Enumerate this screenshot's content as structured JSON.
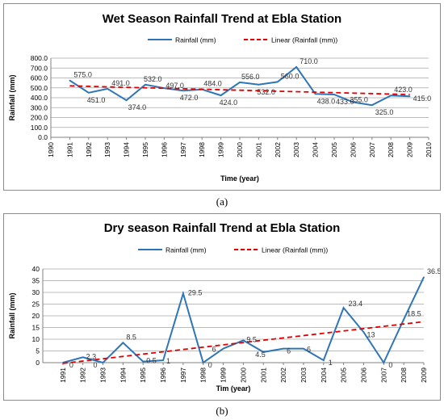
{
  "chart_data": [
    {
      "type": "line",
      "title": "Wet Season Rainfall Trend at Ebla Station",
      "xlabel": "Time (year)",
      "ylabel": "Rainfall (mm)",
      "xlim": [
        1990,
        2010
      ],
      "ylim": [
        0,
        800
      ],
      "y_tick_format": "0.0",
      "x_ticks": [
        1990,
        1991,
        1992,
        1993,
        1994,
        1995,
        1996,
        1997,
        1998,
        1999,
        2000,
        2001,
        2002,
        2003,
        2004,
        2005,
        2006,
        2007,
        2008,
        2009,
        2010
      ],
      "y_ticks": [
        "0.0",
        "100.0",
        "200.0",
        "300.0",
        "400.0",
        "500.0",
        "600.0",
        "700.0",
        "800.0"
      ],
      "grid": true,
      "legend_position": "top",
      "series": [
        {
          "name": "Rainfall (mm)",
          "color": "#2e75b6",
          "x": [
            1991,
            1992,
            1993,
            1994,
            1995,
            1996,
            1997,
            1998,
            1999,
            2000,
            2001,
            2002,
            2003,
            2004,
            2005,
            2006,
            2007,
            2008,
            2009
          ],
          "y": [
            575.0,
            451.0,
            491.0,
            374.0,
            532.0,
            497.0,
            472.0,
            484.0,
            424.0,
            556.0,
            532.0,
            560.0,
            710.0,
            438.0,
            433.0,
            355.0,
            325.0,
            423.0,
            415.0
          ],
          "labels": [
            "575.0",
            "451.0",
            "491.0",
            "374.0",
            "532.0",
            "497.0",
            "472.0",
            "484.0",
            "424.0",
            "556.0",
            "532.0",
            "560.0",
            "710.0",
            "438.0",
            "433.0",
            "355.0",
            "325.0",
            "423.0",
            "415.0"
          ]
        },
        {
          "name": "Linear (Rainfall (mm))",
          "color": "#e00000",
          "style": "dashed",
          "x": [
            1991,
            2009
          ],
          "y": [
            520,
            432
          ]
        }
      ]
    },
    {
      "type": "line",
      "title": "Dry season Rainfall Trend at Ebla Station",
      "xlabel": "Tim (year)",
      "ylabel": "Rainfall (mm)",
      "xlim": [
        1990,
        2009
      ],
      "ylim": [
        0,
        40
      ],
      "x_ticks": [
        1991,
        1992,
        1993,
        1994,
        1995,
        1996,
        1997,
        1998,
        1999,
        2000,
        2001,
        2002,
        2003,
        2004,
        2005,
        2006,
        2007,
        2008,
        2009
      ],
      "y_ticks": [
        "0",
        "5",
        "10",
        "15",
        "20",
        "25",
        "30",
        "35",
        "40"
      ],
      "grid": true,
      "legend_position": "top",
      "series": [
        {
          "name": "Rainfall (mm)",
          "color": "#2e75b6",
          "x": [
            1991,
            1992,
            1993,
            1994,
            1995,
            1996,
            1997,
            1998,
            1999,
            2000,
            2001,
            2002,
            2003,
            2004,
            2005,
            2006,
            2007,
            2008,
            2009
          ],
          "y": [
            0,
            2.3,
            0,
            8.5,
            0.5,
            1,
            29.5,
            0,
            6,
            9.5,
            4.5,
            6,
            6,
            1,
            23.4,
            13,
            0,
            18.5,
            36.5
          ],
          "labels": [
            "0",
            "2.3",
            "0",
            "8.5",
            "0.5",
            "1",
            "29.5",
            "0",
            "6",
            "9.5",
            "4.5",
            "6",
            "6",
            "1",
            "23.4",
            "13",
            "0",
            "18.5",
            "36.5"
          ]
        },
        {
          "name": "Linear (Rainfall (mm))",
          "color": "#e00000",
          "style": "dashed",
          "x": [
            1991,
            2009
          ],
          "y": [
            -0.3,
            17.5
          ]
        }
      ]
    }
  ],
  "captions": [
    "(a)",
    "(b)"
  ]
}
